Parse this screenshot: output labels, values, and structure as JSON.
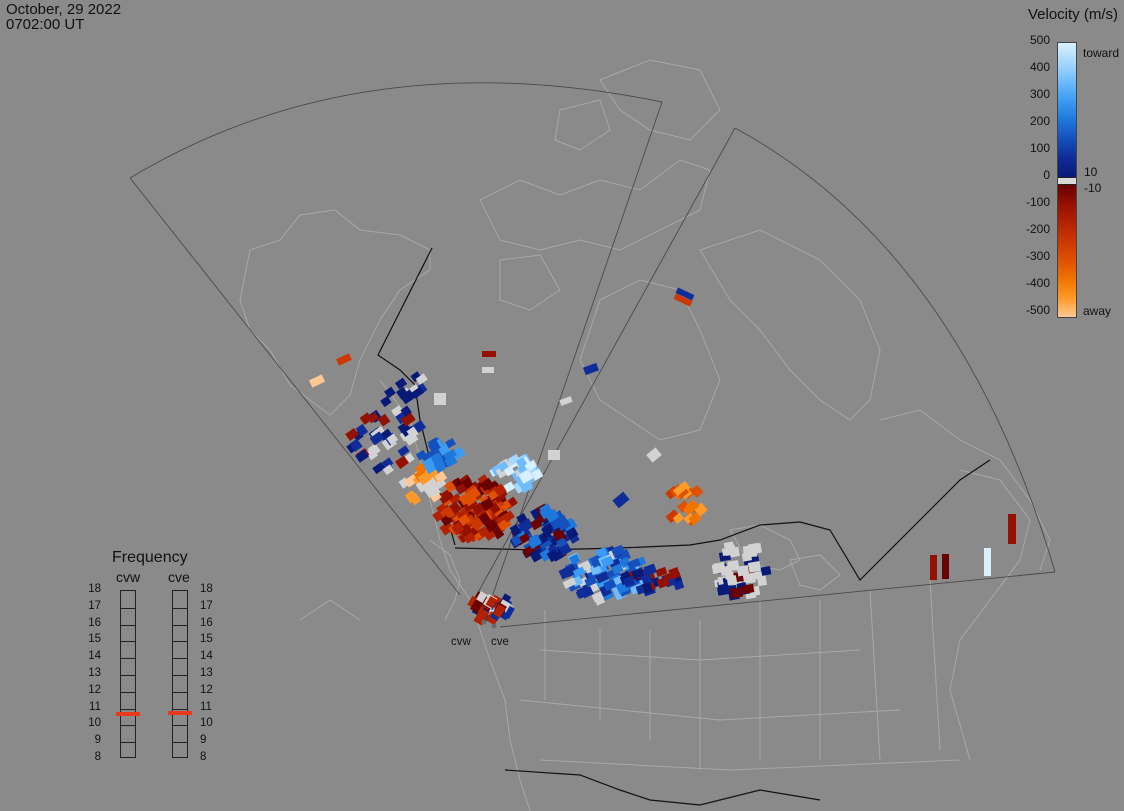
{
  "header": {
    "date": "October, 29 2022",
    "time": "0702:00 UT"
  },
  "colorbar": {
    "title": "Velocity (m/s)",
    "ticks": [
      "500",
      "400",
      "300",
      "200",
      "100",
      "0",
      "-100",
      "-200",
      "-300",
      "-400",
      "-500"
    ],
    "toward_label": "toward",
    "away_label": "away",
    "pos_threshold": "10",
    "neg_threshold": "-10",
    "colors_toward": [
      "#d8f0ff",
      "#a8d8ff",
      "#6fbcff",
      "#3c9cf4",
      "#1f78dc",
      "#1650bc",
      "#0f2c98",
      "#081a78"
    ],
    "colors_away": [
      "#6a0000",
      "#941000",
      "#b22200",
      "#cc3800",
      "#e05000",
      "#f07400",
      "#ff9a28",
      "#ffc896"
    ]
  },
  "frequency": {
    "title": "Frequency",
    "radars": [
      {
        "name": "cvw",
        "freq_mhz": 10.6
      },
      {
        "name": "cve",
        "freq_mhz": 10.7
      }
    ],
    "scale": [
      "18",
      "17",
      "16",
      "15",
      "14",
      "13",
      "12",
      "11",
      "10",
      "9",
      "8"
    ],
    "indicator_color": "#e83a1a"
  },
  "sites": [
    {
      "label": "cvw"
    },
    {
      "label": "cve"
    }
  ]
}
